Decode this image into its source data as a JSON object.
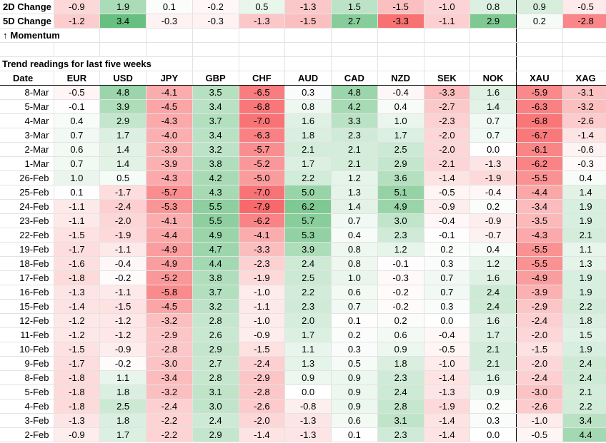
{
  "currencies": [
    "EUR",
    "USD",
    "JPY",
    "GBP",
    "CHF",
    "AUD",
    "CAD",
    "NZD",
    "SEK",
    "NOK",
    "XAU",
    "XAG"
  ],
  "summary": [
    {
      "label": "2D Change",
      "values": [
        "-0.9",
        "1.9",
        "0.1",
        "-0.2",
        "0.5",
        "-1.3",
        "1.5",
        "-1.5",
        "-1.0",
        "0.8",
        "0.9",
        "-0.5"
      ]
    },
    {
      "label": "5D Change",
      "values": [
        "-1.2",
        "3.4",
        "-0.3",
        "-0.3",
        "-1.3",
        "-1.5",
        "2.7",
        "-3.3",
        "-1.1",
        "2.9",
        "0.2",
        "-2.8"
      ]
    }
  ],
  "momentum_label": "Momentum",
  "momentum_arrow": "↑",
  "trend_title": "Trend readings for last five weeks",
  "date_header": "Date",
  "rows": [
    {
      "date": "8-Mar",
      "values": [
        "-0.5",
        "4.8",
        "-4.1",
        "3.5",
        "-6.5",
        "0.3",
        "4.8",
        "-0.4",
        "-3.3",
        "1.6",
        "-5.9",
        "-3.1"
      ]
    },
    {
      "date": "5-Mar",
      "values": [
        "-0.1",
        "3.9",
        "-4.5",
        "3.4",
        "-6.8",
        "0.8",
        "4.2",
        "0.4",
        "-2.7",
        "1.4",
        "-6.3",
        "-3.2"
      ]
    },
    {
      "date": "4-Mar",
      "values": [
        "0.4",
        "2.9",
        "-4.3",
        "3.7",
        "-7.0",
        "1.6",
        "3.3",
        "1.0",
        "-2.3",
        "0.7",
        "-6.8",
        "-2.6"
      ]
    },
    {
      "date": "3-Mar",
      "values": [
        "0.7",
        "1.7",
        "-4.0",
        "3.4",
        "-6.3",
        "1.8",
        "2.3",
        "1.7",
        "-2.0",
        "0.7",
        "-6.7",
        "-1.4"
      ]
    },
    {
      "date": "2-Mar",
      "values": [
        "0.6",
        "1.4",
        "-3.9",
        "3.2",
        "-5.7",
        "2.1",
        "2.1",
        "2.5",
        "-2.0",
        "0.0",
        "-6.1",
        "-0.6"
      ]
    },
    {
      "date": "1-Mar",
      "values": [
        "0.7",
        "1.4",
        "-3.9",
        "3.8",
        "-5.2",
        "1.7",
        "2.1",
        "2.9",
        "-2.1",
        "-1.3",
        "-6.2",
        "-0.3"
      ]
    },
    {
      "date": "26-Feb",
      "values": [
        "1.0",
        "0.5",
        "-4.3",
        "4.2",
        "-5.0",
        "2.2",
        "1.2",
        "3.6",
        "-1.4",
        "-1.9",
        "-5.5",
        "0.4"
      ]
    },
    {
      "date": "25-Feb",
      "values": [
        "0.1",
        "-1.7",
        "-5.7",
        "4.3",
        "-7.0",
        "5.0",
        "1.3",
        "5.1",
        "-0.5",
        "-0.4",
        "-4.4",
        "1.4"
      ]
    },
    {
      "date": "24-Feb",
      "values": [
        "-1.1",
        "-2.4",
        "-5.3",
        "5.5",
        "-7.9",
        "6.2",
        "1.4",
        "4.9",
        "-0.9",
        "0.2",
        "-3.4",
        "1.9"
      ]
    },
    {
      "date": "23-Feb",
      "values": [
        "-1.1",
        "-2.0",
        "-4.1",
        "5.5",
        "-6.2",
        "5.7",
        "0.7",
        "3.0",
        "-0.4",
        "-0.9",
        "-3.5",
        "1.9"
      ]
    },
    {
      "date": "22-Feb",
      "values": [
        "-1.5",
        "-1.9",
        "-4.4",
        "4.9",
        "-4.1",
        "5.3",
        "0.4",
        "2.3",
        "-0.1",
        "-0.7",
        "-4.3",
        "2.1"
      ]
    },
    {
      "date": "19-Feb",
      "values": [
        "-1.7",
        "-1.1",
        "-4.9",
        "4.7",
        "-3.3",
        "3.9",
        "0.8",
        "1.2",
        "0.2",
        "0.4",
        "-5.5",
        "1.1"
      ]
    },
    {
      "date": "18-Feb",
      "values": [
        "-1.6",
        "-0.4",
        "-4.9",
        "4.4",
        "-2.3",
        "2.4",
        "0.8",
        "-0.1",
        "0.3",
        "1.2",
        "-5.5",
        "1.3"
      ]
    },
    {
      "date": "17-Feb",
      "values": [
        "-1.8",
        "-0.2",
        "-5.2",
        "3.8",
        "-1.9",
        "2.5",
        "1.0",
        "-0.3",
        "0.7",
        "1.6",
        "-4.9",
        "1.9"
      ]
    },
    {
      "date": "16-Feb",
      "values": [
        "-1.3",
        "-1.1",
        "-5.8",
        "3.7",
        "-1.0",
        "2.2",
        "0.6",
        "-0.2",
        "0.7",
        "2.4",
        "-3.9",
        "1.9"
      ]
    },
    {
      "date": "15-Feb",
      "values": [
        "-1.4",
        "-1.5",
        "-4.5",
        "3.2",
        "-1.1",
        "2.3",
        "0.7",
        "-0.2",
        "0.3",
        "2.4",
        "-2.9",
        "2.2"
      ]
    },
    {
      "date": "12-Feb",
      "values": [
        "-1.2",
        "-1.2",
        "-3.2",
        "2.8",
        "-1.0",
        "2.0",
        "0.1",
        "0.2",
        "0.0",
        "1.6",
        "-2.4",
        "1.8"
      ]
    },
    {
      "date": "11-Feb",
      "values": [
        "-1.2",
        "-1.2",
        "-2.9",
        "2.6",
        "-0.9",
        "1.7",
        "0.2",
        "0.6",
        "-0.4",
        "1.7",
        "-2.0",
        "1.5"
      ]
    },
    {
      "date": "10-Feb",
      "values": [
        "-1.5",
        "-0.9",
        "-2.8",
        "2.9",
        "-1.5",
        "1.1",
        "0.3",
        "0.9",
        "-0.5",
        "2.1",
        "-1.5",
        "1.9"
      ]
    },
    {
      "date": "9-Feb",
      "values": [
        "-1.7",
        "-0.2",
        "-3.0",
        "2.7",
        "-2.4",
        "1.3",
        "0.5",
        "1.8",
        "-1.0",
        "2.1",
        "-2.0",
        "2.4"
      ]
    },
    {
      "date": "8-Feb",
      "values": [
        "-1.8",
        "1.1",
        "-3.4",
        "2.8",
        "-2.9",
        "0.9",
        "0.9",
        "2.3",
        "-1.4",
        "1.6",
        "-2.4",
        "2.4"
      ]
    },
    {
      "date": "5-Feb",
      "values": [
        "-1.8",
        "1.8",
        "-3.2",
        "3.1",
        "-2.8",
        "0.0",
        "0.9",
        "2.4",
        "-1.3",
        "0.9",
        "-3.0",
        "2.1"
      ]
    },
    {
      "date": "4-Feb",
      "values": [
        "-1.8",
        "2.5",
        "-2.4",
        "3.0",
        "-2.6",
        "-0.8",
        "0.9",
        "2.8",
        "-1.9",
        "0.2",
        "-2.6",
        "2.2"
      ]
    },
    {
      "date": "3-Feb",
      "values": [
        "-1.3",
        "1.8",
        "-2.2",
        "2.4",
        "-2.0",
        "-1.3",
        "0.6",
        "3.1",
        "-1.4",
        "0.3",
        "-1.0",
        "3.4"
      ]
    },
    {
      "date": "2-Feb",
      "values": [
        "-0.9",
        "1.7",
        "-2.2",
        "2.9",
        "-1.4",
        "-1.3",
        "0.1",
        "2.3",
        "-1.4",
        "0.0",
        "-0.5",
        "4.4"
      ]
    }
  ],
  "colors": {
    "positive": "#63be7b",
    "negative": "#f8696b",
    "neutral": "#ffffff"
  }
}
